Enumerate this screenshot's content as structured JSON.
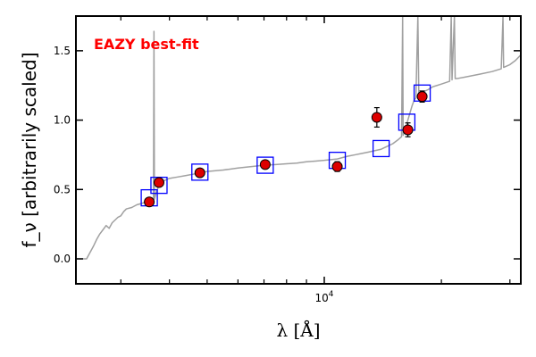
{
  "chart_data": {
    "type": "scatter",
    "annotation": {
      "text": "EAZY best-fit",
      "color": "#ff0000"
    },
    "xlabel": "λ [Å]",
    "ylabel": "f_ν [arbitrarily scaled]",
    "x_scale": "log",
    "xlim": [
      2300,
      32000
    ],
    "ylim": [
      -0.18,
      1.75
    ],
    "yticks": [
      0.0,
      0.5,
      1.0,
      1.5
    ],
    "ytick_labels": [
      "0.0",
      "0.5",
      "1.0",
      "1.5"
    ],
    "xticks_major": [
      10000
    ],
    "xtick_labels": [
      "10^4"
    ],
    "xticks_minor": [
      3000,
      4000,
      5000,
      6000,
      7000,
      8000,
      9000,
      20000,
      30000
    ],
    "grid": false,
    "colors": {
      "spectrum": "#a0a0a0",
      "model_boxes": "#0000ff",
      "points_fill": "#dd0000",
      "points_edge": "#000000"
    },
    "observed_photometry": [
      {
        "x": 3550,
        "y": 0.41,
        "err": 0.02
      },
      {
        "x": 3760,
        "y": 0.55,
        "err": 0.02
      },
      {
        "x": 4790,
        "y": 0.62,
        "err": 0.02
      },
      {
        "x": 7050,
        "y": 0.68,
        "err": 0.02
      },
      {
        "x": 10800,
        "y": 0.665,
        "err": 0.035
      },
      {
        "x": 13650,
        "y": 1.02,
        "err": 0.07
      },
      {
        "x": 16400,
        "y": 0.93,
        "err": 0.05
      },
      {
        "x": 17850,
        "y": 1.17,
        "err": 0.04
      }
    ],
    "model_photometry": [
      {
        "x": 3550,
        "y": 0.44
      },
      {
        "x": 3760,
        "y": 0.53
      },
      {
        "x": 4790,
        "y": 0.625
      },
      {
        "x": 7050,
        "y": 0.675
      },
      {
        "x": 10800,
        "y": 0.71
      },
      {
        "x": 14000,
        "y": 0.795
      },
      {
        "x": 16300,
        "y": 0.985
      },
      {
        "x": 17850,
        "y": 1.195
      }
    ],
    "spectrum": [
      [
        2300,
        0.0
      ],
      [
        2450,
        0.0
      ],
      [
        2550,
        0.09
      ],
      [
        2600,
        0.14
      ],
      [
        2650,
        0.18
      ],
      [
        2700,
        0.21
      ],
      [
        2750,
        0.24
      ],
      [
        2800,
        0.22
      ],
      [
        2850,
        0.26
      ],
      [
        2900,
        0.28
      ],
      [
        2950,
        0.3
      ],
      [
        3000,
        0.31
      ],
      [
        3050,
        0.34
      ],
      [
        3100,
        0.36
      ],
      [
        3200,
        0.37
      ],
      [
        3300,
        0.39
      ],
      [
        3400,
        0.4
      ],
      [
        3550,
        0.42
      ],
      [
        3640,
        0.43
      ],
      [
        3650,
        1.64
      ],
      [
        3660,
        0.43
      ],
      [
        3700,
        0.48
      ],
      [
        3760,
        0.53
      ],
      [
        3850,
        0.56
      ],
      [
        4000,
        0.58
      ],
      [
        4200,
        0.59
      ],
      [
        4400,
        0.6
      ],
      [
        4600,
        0.61
      ],
      [
        4800,
        0.62
      ],
      [
        5000,
        0.63
      ],
      [
        5500,
        0.64
      ],
      [
        6000,
        0.655
      ],
      [
        6500,
        0.665
      ],
      [
        7000,
        0.675
      ],
      [
        7500,
        0.68
      ],
      [
        8000,
        0.685
      ],
      [
        8500,
        0.69
      ],
      [
        9000,
        0.7
      ],
      [
        9500,
        0.705
      ],
      [
        10000,
        0.71
      ],
      [
        10800,
        0.72
      ],
      [
        11500,
        0.74
      ],
      [
        12000,
        0.75
      ],
      [
        12500,
        0.76
      ],
      [
        13000,
        0.77
      ],
      [
        13500,
        0.78
      ],
      [
        14000,
        0.79
      ],
      [
        14500,
        0.81
      ],
      [
        15000,
        0.83
      ],
      [
        15500,
        0.86
      ],
      [
        15800,
        0.88
      ],
      [
        15900,
        1.75
      ],
      [
        15950,
        0.89
      ],
      [
        16200,
        0.95
      ],
      [
        16400,
        1.0
      ],
      [
        16600,
        1.05
      ],
      [
        16800,
        1.1
      ],
      [
        17000,
        1.14
      ],
      [
        17200,
        1.16
      ],
      [
        17400,
        1.75
      ],
      [
        17500,
        1.18
      ],
      [
        17850,
        1.2
      ],
      [
        18500,
        1.22
      ],
      [
        19000,
        1.24
      ],
      [
        20000,
        1.26
      ],
      [
        21000,
        1.28
      ],
      [
        21200,
        1.75
      ],
      [
        21300,
        1.29
      ],
      [
        21600,
        1.75
      ],
      [
        21700,
        1.3
      ],
      [
        22000,
        1.3
      ],
      [
        23000,
        1.31
      ],
      [
        25000,
        1.33
      ],
      [
        27000,
        1.35
      ],
      [
        28500,
        1.37
      ],
      [
        28800,
        1.75
      ],
      [
        28900,
        1.38
      ],
      [
        30000,
        1.4
      ],
      [
        31000,
        1.43
      ],
      [
        32000,
        1.47
      ]
    ]
  }
}
